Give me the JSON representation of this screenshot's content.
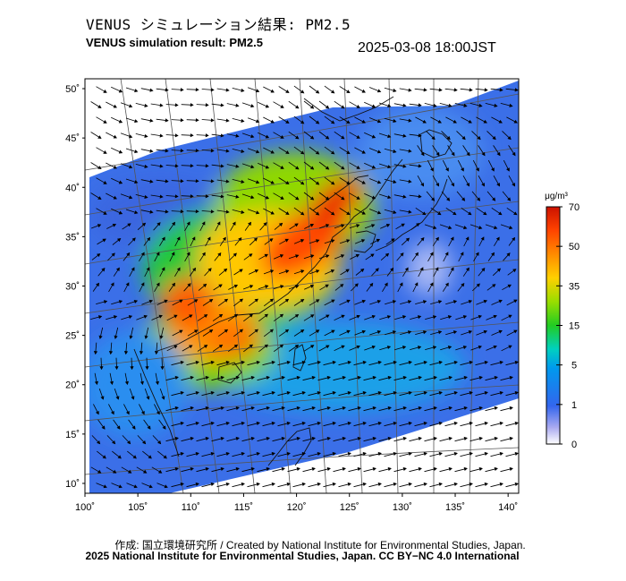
{
  "header": {
    "title_jp": "VENUS シミュレーション結果: PM2.5",
    "title_en": "VENUS simulation result: PM2.5",
    "timestamp": "2025-03-08 18:00JST"
  },
  "map": {
    "lat_labels": [
      "50˚",
      "45˚",
      "40˚",
      "35˚",
      "30˚",
      "25˚",
      "20˚",
      "15˚",
      "10˚"
    ],
    "lon_labels": [
      "100˚",
      "105˚",
      "110˚",
      "115˚",
      "120˚",
      "125˚",
      "130˚",
      "135˚",
      "140˚"
    ],
    "lat_ticks": [
      50,
      45,
      40,
      35,
      30,
      25,
      20,
      15,
      10
    ],
    "lon_ticks": [
      100,
      105,
      110,
      115,
      120,
      125,
      130,
      135,
      140
    ]
  },
  "colorbar": {
    "unit": "μg/m³",
    "tick_labels": [
      "70",
      "50",
      "35",
      "15",
      "5",
      "1",
      "0"
    ],
    "colors": [
      "#cc1100",
      "#ff4400",
      "#ff9900",
      "#ffd000",
      "#99dd00",
      "#22cc22",
      "#00d0c0",
      "#0099ee",
      "#3366ee",
      "#aaaaf0",
      "#ffffff"
    ]
  },
  "credits": {
    "line1": "作成: 国立環境研究所 / Created by National Institute for Environmental Studies, Japan.",
    "line2": "2025 National Institute for Environmental Studies, Japan. CC BY−NC 4.0 International"
  }
}
